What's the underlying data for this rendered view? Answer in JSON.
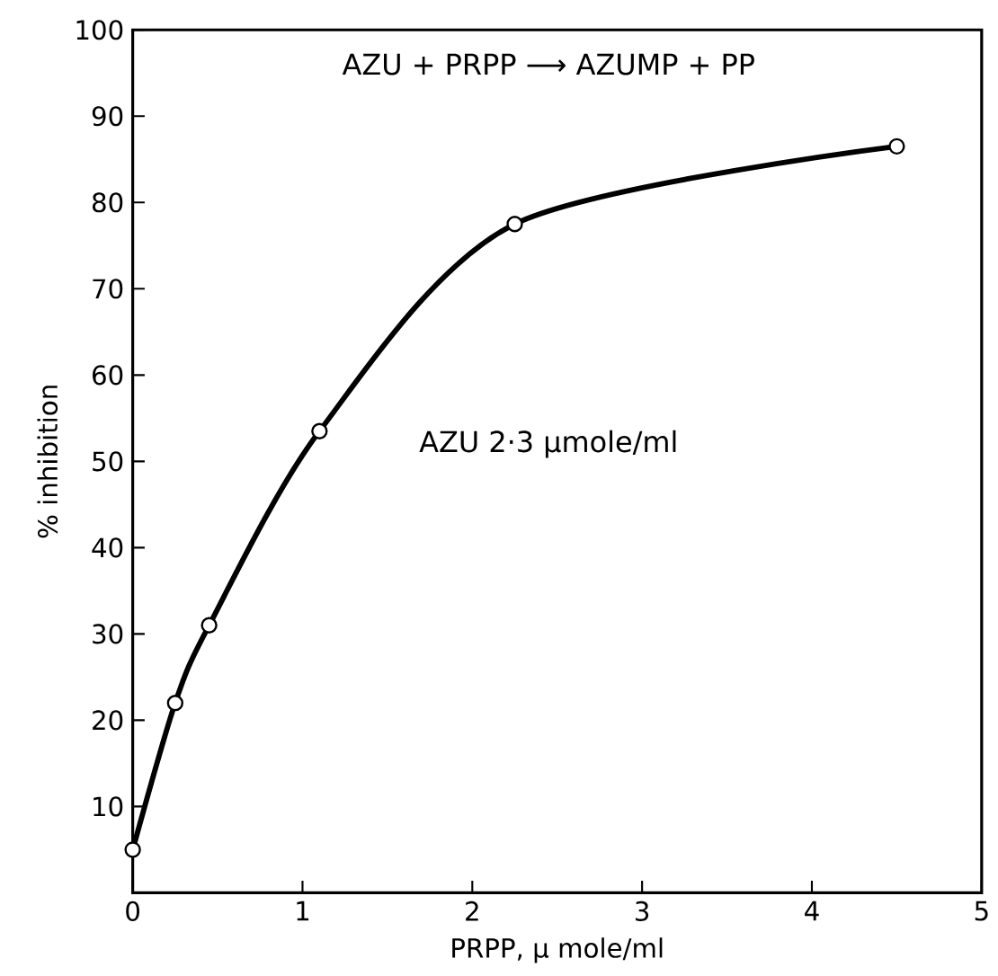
{
  "chart_data": {
    "type": "line",
    "xlabel": "PRPP,  μ mole/ml",
    "ylabel": "%  inhibition",
    "x": [
      0,
      0.25,
      0.45,
      1.1,
      2.25,
      4.5
    ],
    "series": [
      {
        "color": "#000000",
        "values": [
          5,
          22,
          31,
          53.5,
          77.5,
          86.5
        ]
      }
    ],
    "xlim": [
      0,
      5
    ],
    "xticks": [
      0,
      1,
      2,
      3,
      4,
      5
    ],
    "ylim": [
      0,
      100
    ],
    "yticks": [
      {
        "value": 0,
        "label": null
      },
      10,
      20,
      30,
      40,
      50,
      60,
      70,
      80,
      90,
      100
    ],
    "marker": "circle",
    "line_style": "solid",
    "grid": false,
    "annotations": [
      "AZU + PRPP  ⟶  AZUMP + PP",
      "AZU  2·3 μmole/ml"
    ]
  }
}
